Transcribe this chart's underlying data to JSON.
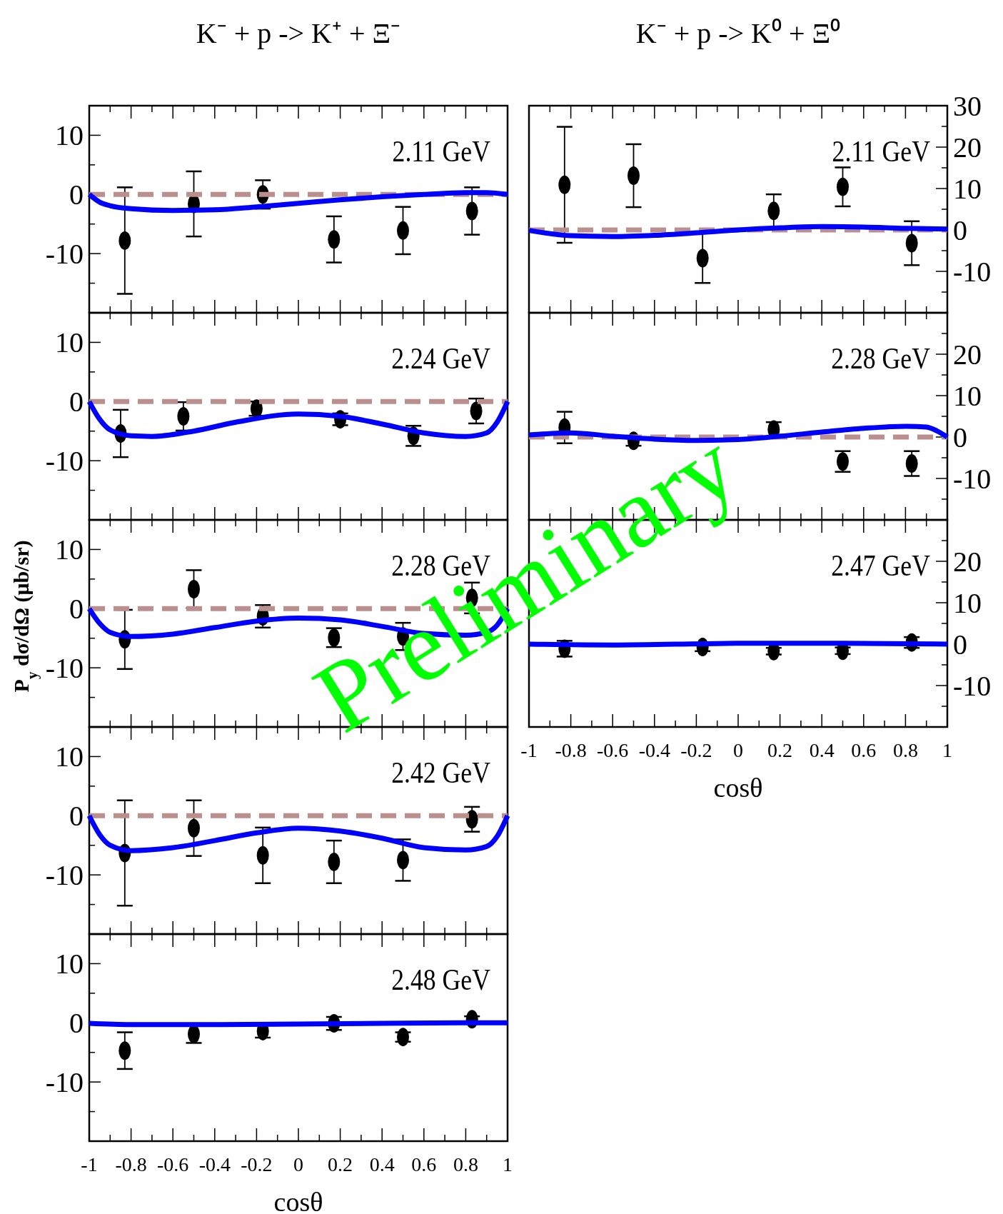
{
  "chart_data": [
    {
      "type": "scatter",
      "title": "K⁻ + p -> K⁺ + Ξ⁻",
      "annotations": [
        "2.11 GeV"
      ],
      "xlim": [
        -1,
        1
      ],
      "xticks": [
        -1,
        {
          "value": -0.9,
          "label": null
        },
        -0.8,
        {
          "value": -0.7,
          "label": null
        },
        -0.6,
        {
          "value": -0.5,
          "label": null
        },
        -0.4,
        {
          "value": -0.3,
          "label": null
        },
        -0.2,
        {
          "value": -0.1,
          "label": null
        },
        0,
        {
          "value": 0.1,
          "label": null
        },
        0.2,
        {
          "value": 0.3,
          "label": null
        },
        0.4,
        {
          "value": 0.5,
          "label": null
        },
        0.6,
        {
          "value": 0.7,
          "label": null
        },
        0.8,
        {
          "value": 0.9,
          "label": null
        },
        1
      ],
      "ylim": [
        -20,
        15
      ],
      "yticks": [
        {
          "value": -15,
          "label": null
        },
        -10,
        {
          "value": -5,
          "label": null
        },
        0,
        {
          "value": 5,
          "label": null
        },
        10
      ],
      "tick_labels": "y",
      "series": [
        {
          "type": "line",
          "color": "#bc8f8f",
          "line_style": "dashed",
          "x": [
            -1,
            1
          ],
          "values": [
            0,
            0
          ]
        },
        {
          "type": "line",
          "color": "#0000ff",
          "line_style": "solid",
          "x": [
            -1,
            -0.95,
            -0.9,
            -0.8,
            -0.6,
            -0.4,
            -0.2,
            0,
            0.2,
            0.4,
            0.6,
            0.8,
            0.9,
            1
          ],
          "values": [
            0,
            -1.3,
            -1.9,
            -2.4,
            -2.7,
            -2.6,
            -2.1,
            -1.5,
            -0.9,
            -0.4,
            0,
            0.3,
            0.3,
            0
          ]
        },
        {
          "type": "scatter",
          "color": "#000000",
          "marker": "circle",
          "x": [
            -0.83,
            -0.5,
            -0.17,
            0.17,
            0.5,
            0.83
          ],
          "values": [
            -7.8,
            -1.6,
            0,
            -7.6,
            -6.1,
            -2.8
          ],
          "errors": [
            9,
            5.5,
            2.4,
            3.9,
            4,
            4
          ]
        }
      ]
    },
    {
      "type": "scatter",
      "annotations": [
        "2.24 GeV"
      ],
      "xlim": [
        -1,
        1
      ],
      "xticks": [
        -1,
        {
          "value": -0.9,
          "label": null
        },
        -0.8,
        {
          "value": -0.7,
          "label": null
        },
        -0.6,
        {
          "value": -0.5,
          "label": null
        },
        -0.4,
        {
          "value": -0.3,
          "label": null
        },
        -0.2,
        {
          "value": -0.1,
          "label": null
        },
        0,
        {
          "value": 0.1,
          "label": null
        },
        0.2,
        {
          "value": 0.3,
          "label": null
        },
        0.4,
        {
          "value": 0.5,
          "label": null
        },
        0.6,
        {
          "value": 0.7,
          "label": null
        },
        0.8,
        {
          "value": 0.9,
          "label": null
        },
        1
      ],
      "ylim": [
        -20,
        15
      ],
      "yticks": [
        {
          "value": -15,
          "label": null
        },
        -10,
        {
          "value": -5,
          "label": null
        },
        0,
        {
          "value": 5,
          "label": null
        },
        10
      ],
      "tick_labels": "y",
      "series": [
        {
          "type": "line",
          "color": "#bc8f8f",
          "line_style": "dashed",
          "x": [
            -1,
            1
          ],
          "values": [
            0,
            0
          ]
        },
        {
          "type": "line",
          "color": "#0000ff",
          "line_style": "solid",
          "x": [
            -1,
            -0.95,
            -0.9,
            -0.8,
            -0.7,
            -0.5,
            -0.3,
            0,
            0.2,
            0.4,
            0.6,
            0.8,
            0.9,
            0.95,
            1
          ],
          "values": [
            0,
            -3,
            -4.8,
            -5.8,
            -5.9,
            -5,
            -3.5,
            -2.1,
            -2.5,
            -3.8,
            -5.3,
            -5.9,
            -5.3,
            -3.5,
            0
          ]
        },
        {
          "type": "scatter",
          "color": "#000000",
          "marker": "circle",
          "x": [
            -0.85,
            -0.55,
            -0.2,
            0.2,
            0.55,
            0.85
          ],
          "values": [
            -5.4,
            -2.5,
            -1.2,
            -3,
            -5.8,
            -1.6
          ],
          "errors": [
            4,
            2.4,
            1.2,
            1,
            1.7,
            2.1
          ]
        }
      ]
    },
    {
      "type": "scatter",
      "ylabel": "P$_{y}$ dσ/dΩ (μb/sr)",
      "annotations": [
        "2.28 GeV",
        "Preliminary"
      ],
      "xlim": [
        -1,
        1
      ],
      "xticks": [
        -1,
        {
          "value": -0.9,
          "label": null
        },
        -0.8,
        {
          "value": -0.7,
          "label": null
        },
        -0.6,
        {
          "value": -0.5,
          "label": null
        },
        -0.4,
        {
          "value": -0.3,
          "label": null
        },
        -0.2,
        {
          "value": -0.1,
          "label": null
        },
        0,
        {
          "value": 0.1,
          "label": null
        },
        0.2,
        {
          "value": 0.3,
          "label": null
        },
        0.4,
        {
          "value": 0.5,
          "label": null
        },
        0.6,
        {
          "value": 0.7,
          "label": null
        },
        0.8,
        {
          "value": 0.9,
          "label": null
        },
        1
      ],
      "ylim": [
        -20,
        15
      ],
      "yticks": [
        {
          "value": -15,
          "label": null
        },
        -10,
        {
          "value": -5,
          "label": null
        },
        0,
        {
          "value": 5,
          "label": null
        },
        10
      ],
      "tick_labels": "y",
      "series": [
        {
          "type": "line",
          "color": "#bc8f8f",
          "line_style": "dashed",
          "x": [
            -1,
            1
          ],
          "values": [
            0,
            0
          ]
        },
        {
          "type": "line",
          "color": "#0000ff",
          "line_style": "solid",
          "x": [
            -1,
            -0.95,
            -0.9,
            -0.8,
            -0.6,
            -0.4,
            -0.2,
            0,
            0.2,
            0.4,
            0.6,
            0.8,
            0.9,
            0.95,
            1
          ],
          "values": [
            0,
            -2.5,
            -4,
            -4.7,
            -4.3,
            -3.2,
            -2.1,
            -1.6,
            -1.9,
            -3,
            -4.2,
            -4.5,
            -4,
            -2.8,
            0
          ]
        },
        {
          "type": "scatter",
          "color": "#000000",
          "marker": "circle",
          "x": [
            -0.83,
            -0.5,
            -0.17,
            0.17,
            0.5,
            0.83
          ],
          "values": [
            -5.2,
            3.3,
            -1.3,
            -4.9,
            -4.7,
            1.8
          ],
          "errors": [
            5,
            3.2,
            1.9,
            1.6,
            2.3,
            2.6
          ]
        }
      ]
    },
    {
      "type": "scatter",
      "annotations": [
        "2.42 GeV"
      ],
      "xlim": [
        -1,
        1
      ],
      "xticks": [
        -1,
        {
          "value": -0.9,
          "label": null
        },
        -0.8,
        {
          "value": -0.7,
          "label": null
        },
        -0.6,
        {
          "value": -0.5,
          "label": null
        },
        -0.4,
        {
          "value": -0.3,
          "label": null
        },
        -0.2,
        {
          "value": -0.1,
          "label": null
        },
        0,
        {
          "value": 0.1,
          "label": null
        },
        0.2,
        {
          "value": 0.3,
          "label": null
        },
        0.4,
        {
          "value": 0.5,
          "label": null
        },
        0.6,
        {
          "value": 0.7,
          "label": null
        },
        0.8,
        {
          "value": 0.9,
          "label": null
        },
        1
      ],
      "ylim": [
        -20,
        15
      ],
      "yticks": [
        {
          "value": -15,
          "label": null
        },
        -10,
        {
          "value": -5,
          "label": null
        },
        0,
        {
          "value": 5,
          "label": null
        },
        10
      ],
      "tick_labels": "y",
      "series": [
        {
          "type": "line",
          "color": "#bc8f8f",
          "line_style": "dashed",
          "x": [
            -1,
            1
          ],
          "values": [
            0,
            0
          ]
        },
        {
          "type": "line",
          "color": "#0000ff",
          "line_style": "solid",
          "x": [
            -1,
            -0.95,
            -0.9,
            -0.8,
            -0.6,
            -0.4,
            -0.2,
            0,
            0.2,
            0.4,
            0.6,
            0.8,
            0.9,
            0.95,
            1
          ],
          "values": [
            0,
            -3.2,
            -5,
            -5.9,
            -5.4,
            -4.2,
            -2.9,
            -2.1,
            -2.6,
            -3.8,
            -5.4,
            -5.8,
            -5.2,
            -3.5,
            0
          ]
        },
        {
          "type": "scatter",
          "color": "#000000",
          "marker": "circle",
          "x": [
            -0.83,
            -0.5,
            -0.17,
            0.17,
            0.5,
            0.83
          ],
          "values": [
            -6.3,
            -2.1,
            -6.7,
            -7.8,
            -7.5,
            -0.6
          ],
          "errors": [
            8.9,
            4.7,
            4.7,
            3.6,
            3.5,
            2.1
          ]
        }
      ]
    },
    {
      "type": "scatter",
      "xlabel": "cosθ",
      "annotations": [
        "2.48 GeV"
      ],
      "xlim": [
        -1,
        1
      ],
      "xticks": [
        -1,
        {
          "value": -0.9,
          "label": null
        },
        -0.8,
        {
          "value": -0.7,
          "label": null
        },
        -0.6,
        {
          "value": -0.5,
          "label": null
        },
        -0.4,
        {
          "value": -0.3,
          "label": null
        },
        -0.2,
        {
          "value": -0.1,
          "label": null
        },
        0,
        {
          "value": 0.1,
          "label": null
        },
        0.2,
        {
          "value": 0.3,
          "label": null
        },
        0.4,
        {
          "value": 0.5,
          "label": null
        },
        0.6,
        {
          "value": 0.7,
          "label": null
        },
        0.8,
        {
          "value": 0.9,
          "label": null
        },
        1
      ],
      "ylim": [
        -20,
        15
      ],
      "yticks": [
        {
          "value": -15,
          "label": null
        },
        -10,
        {
          "value": -5,
          "label": null
        },
        0,
        {
          "value": 5,
          "label": null
        },
        10
      ],
      "series": [
        {
          "type": "line",
          "color": "#0000ff",
          "line_style": "solid",
          "x": [
            -1,
            -0.8,
            -0.4,
            0,
            0.4,
            0.8,
            1
          ],
          "values": [
            -0.1,
            -0.3,
            -0.3,
            -0.2,
            -0.1,
            0,
            0
          ]
        },
        {
          "type": "scatter",
          "color": "#000000",
          "marker": "circle",
          "x": [
            -0.83,
            -0.5,
            -0.17,
            0.17,
            0.5,
            0.83
          ],
          "values": [
            -4.7,
            -1.9,
            -1.4,
            -0.1,
            -2.4,
            0.6
          ],
          "errors": [
            3.1,
            1.5,
            1.1,
            1.1,
            0.8,
            0.5
          ]
        }
      ]
    },
    {
      "type": "scatter",
      "title": "K⁻ + p -> K⁰ + Ξ⁰",
      "annotations": [
        "2.11 GeV"
      ],
      "xlim": [
        -1,
        1
      ],
      "xticks": [
        -1,
        {
          "value": -0.9,
          "label": null
        },
        -0.8,
        {
          "value": -0.7,
          "label": null
        },
        -0.6,
        {
          "value": -0.5,
          "label": null
        },
        -0.4,
        {
          "value": -0.3,
          "label": null
        },
        -0.2,
        {
          "value": -0.1,
          "label": null
        },
        0,
        {
          "value": 0.1,
          "label": null
        },
        0.2,
        {
          "value": 0.3,
          "label": null
        },
        0.4,
        {
          "value": 0.5,
          "label": null
        },
        0.6,
        {
          "value": 0.7,
          "label": null
        },
        0.8,
        {
          "value": 0.9,
          "label": null
        },
        1
      ],
      "y2lim": [
        -20,
        30
      ],
      "y2ticks": [
        {
          "value": -15,
          "label": null
        },
        -10,
        {
          "value": -5,
          "label": null
        },
        0,
        {
          "value": 5,
          "label": null
        },
        10,
        {
          "value": 15,
          "label": null
        },
        20,
        {
          "value": 25,
          "label": null
        },
        30
      ],
      "tick_labels": "y",
      "series": [
        {
          "type": "line",
          "axis": "y2",
          "color": "#bc8f8f",
          "line_style": "dashed",
          "x": [
            -1,
            1
          ],
          "values": [
            0,
            0
          ]
        },
        {
          "type": "line",
          "axis": "y2",
          "color": "#0000ff",
          "line_style": "solid",
          "x": [
            -1,
            -0.8,
            -0.6,
            -0.4,
            -0.2,
            0,
            0.2,
            0.4,
            0.6,
            0.8,
            1
          ],
          "values": [
            -0.1,
            -1.4,
            -1.6,
            -1.3,
            -0.7,
            0,
            0.5,
            0.8,
            0.7,
            0.4,
            0.2
          ]
        },
        {
          "type": "scatter",
          "axis": "y2",
          "color": "#000000",
          "marker": "circle",
          "x": [
            -0.83,
            -0.5,
            -0.17,
            0.17,
            0.5,
            0.83
          ],
          "values": [
            10.9,
            13.1,
            -6.8,
            4.6,
            10.4,
            -3.2
          ],
          "errors": [
            14,
            7.6,
            6,
            4,
            4.7,
            5.3
          ]
        }
      ]
    },
    {
      "type": "scatter",
      "annotations": [
        "2.28 GeV"
      ],
      "xlim": [
        -1,
        1
      ],
      "xticks": [
        -1,
        {
          "value": -0.9,
          "label": null
        },
        -0.8,
        {
          "value": -0.7,
          "label": null
        },
        -0.6,
        {
          "value": -0.5,
          "label": null
        },
        -0.4,
        {
          "value": -0.3,
          "label": null
        },
        -0.2,
        {
          "value": -0.1,
          "label": null
        },
        0,
        {
          "value": 0.1,
          "label": null
        },
        0.2,
        {
          "value": 0.3,
          "label": null
        },
        0.4,
        {
          "value": 0.5,
          "label": null
        },
        0.6,
        {
          "value": 0.7,
          "label": null
        },
        0.8,
        {
          "value": 0.9,
          "label": null
        },
        1
      ],
      "y2lim": [
        -20,
        30
      ],
      "y2ticks": [
        {
          "value": -15,
          "label": null
        },
        -10,
        {
          "value": -5,
          "label": null
        },
        0,
        {
          "value": 5,
          "label": null
        },
        10,
        {
          "value": 15,
          "label": null
        },
        20,
        {
          "value": 25,
          "label": null
        }
      ],
      "tick_labels": "y",
      "series": [
        {
          "type": "line",
          "axis": "y2",
          "color": "#bc8f8f",
          "line_style": "dashed",
          "x": [
            -1,
            1
          ],
          "values": [
            0,
            0
          ]
        },
        {
          "type": "line",
          "axis": "y2",
          "color": "#0000ff",
          "line_style": "solid",
          "x": [
            -1,
            -0.8,
            -0.6,
            -0.4,
            -0.2,
            0,
            0.2,
            0.4,
            0.6,
            0.8,
            0.9,
            0.95,
            1
          ],
          "values": [
            0.5,
            1,
            0.2,
            -0.5,
            -0.8,
            -0.6,
            0.2,
            1.2,
            2.1,
            2.6,
            2.4,
            1.5,
            0
          ]
        },
        {
          "type": "scatter",
          "axis": "y2",
          "color": "#000000",
          "marker": "circle",
          "x": [
            -0.83,
            -0.5,
            0.17,
            0.5,
            0.83
          ],
          "values": [
            2.3,
            -0.9,
            1.8,
            -5.9,
            -6.4
          ],
          "errors": [
            3.8,
            1.2,
            1.8,
            2.5,
            3
          ]
        }
      ]
    },
    {
      "type": "scatter",
      "xlabel": "cosθ",
      "annotations": [
        "2.47 GeV"
      ],
      "xlim": [
        -1,
        1
      ],
      "xticks": [
        -1,
        {
          "value": -0.9,
          "label": null
        },
        -0.8,
        {
          "value": -0.7,
          "label": null
        },
        -0.6,
        {
          "value": -0.5,
          "label": null
        },
        -0.4,
        {
          "value": -0.3,
          "label": null
        },
        -0.2,
        {
          "value": -0.1,
          "label": null
        },
        0,
        {
          "value": 0.1,
          "label": null
        },
        0.2,
        {
          "value": 0.3,
          "label": null
        },
        0.4,
        {
          "value": 0.5,
          "label": null
        },
        0.6,
        {
          "value": 0.7,
          "label": null
        },
        0.8,
        {
          "value": 0.9,
          "label": null
        },
        1
      ],
      "y2lim": [
        -20,
        30
      ],
      "y2ticks": [
        {
          "value": -15,
          "label": null
        },
        -10,
        {
          "value": -5,
          "label": null
        },
        0,
        {
          "value": 5,
          "label": null
        },
        10,
        {
          "value": 15,
          "label": null
        },
        20,
        {
          "value": 25,
          "label": null
        }
      ],
      "series": [
        {
          "type": "line",
          "axis": "y2",
          "color": "#0000ff",
          "line_style": "solid",
          "x": [
            -1,
            -0.6,
            0,
            0.5,
            1
          ],
          "values": [
            0,
            -0.2,
            0.2,
            0.2,
            0
          ]
        },
        {
          "type": "scatter",
          "axis": "y2",
          "color": "#000000",
          "marker": "circle",
          "x": [
            -0.83,
            -0.17,
            0.17,
            0.5,
            0.83
          ],
          "values": [
            -1.1,
            -0.7,
            -1.7,
            -1.6,
            0.4
          ],
          "errors": [
            1.9,
            1,
            0.8,
            0.8,
            1.3
          ]
        }
      ]
    }
  ]
}
